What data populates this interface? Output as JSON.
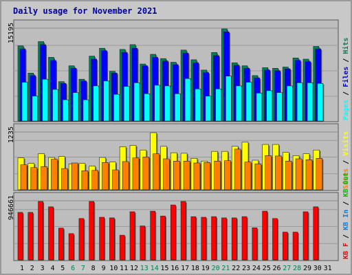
{
  "chart_data": {
    "type": "bar",
    "title": "Daily usage for November 2021",
    "days": [
      "1",
      "2",
      "3",
      "4",
      "5",
      "6",
      "7",
      "8",
      "9",
      "10",
      "11",
      "12",
      "13",
      "14",
      "15",
      "16",
      "17",
      "18",
      "19",
      "20",
      "21",
      "22",
      "23",
      "24",
      "25",
      "26",
      "27",
      "28",
      "29",
      "30",
      "31"
    ],
    "weekend_days": [
      "6",
      "7",
      "13",
      "14",
      "20",
      "21",
      "27",
      "28"
    ],
    "panels": [
      {
        "name": "hits-files-pages",
        "axis_max_label": "15195",
        "ymax": 15195,
        "legend": [
          {
            "label": "Pages",
            "color": "#00ffff"
          },
          {
            "label": " / ",
            "color": "#000000"
          },
          {
            "label": "Files",
            "color": "#0000ff"
          },
          {
            "label": " / ",
            "color": "#000000"
          },
          {
            "label": "Hits",
            "color": "#00805c"
          }
        ],
        "series": [
          {
            "name": "Hits",
            "color": "#00805c",
            "values": [
              12400,
              7900,
              13100,
              10500,
              6500,
              9100,
              6900,
              10700,
              12000,
              8200,
              11800,
              12600,
              9400,
              11000,
              10300,
              9700,
              11700,
              10100,
              8400,
              11300,
              15195,
              9600,
              9100,
              7500,
              8800,
              8700,
              8900,
              10400,
              10200,
              12300,
              null
            ]
          },
          {
            "name": "Files",
            "color": "#0000ff",
            "values": [
              11900,
              7500,
              12600,
              10000,
              6200,
              8700,
              6600,
              10200,
              11600,
              7900,
              11300,
              12000,
              9100,
              10500,
              9900,
              9300,
              11200,
              9600,
              8000,
              10800,
              14700,
              9200,
              8700,
              7100,
              8400,
              8300,
              8600,
              10000,
              9800,
              11900,
              null
            ]
          },
          {
            "name": "Pages",
            "color": "#00ffff",
            "values": [
              6400,
              4100,
              6900,
              5200,
              3500,
              4700,
              3500,
              5800,
              6600,
              4400,
              5700,
              6300,
              4500,
              5900,
              5800,
              4500,
              7000,
              5300,
              4100,
              5300,
              7400,
              5800,
              6400,
              4600,
              5000,
              4700,
              5800,
              6300,
              6300,
              6200,
              null
            ]
          }
        ]
      },
      {
        "name": "visits-sites",
        "axis_max_label": "1235",
        "ymax": 1235,
        "legend": [
          {
            "label": "Sites",
            "color": "#ff8000"
          },
          {
            "label": " / ",
            "color": "#000000"
          },
          {
            "label": "Visits",
            "color": "#ffff00"
          }
        ],
        "series": [
          {
            "name": "Visits",
            "color": "#ffff00",
            "values": [
              690,
              570,
              780,
              700,
              720,
              560,
              570,
              510,
              700,
              600,
              930,
              960,
              860,
              1235,
              940,
              800,
              790,
              680,
              620,
              830,
              830,
              940,
              1030,
              640,
              980,
              980,
              810,
              740,
              780,
              860,
              null
            ]
          },
          {
            "name": "Sites",
            "color": "#ff8000",
            "values": [
              540,
              480,
              500,
              660,
              460,
              580,
              410,
              420,
              590,
              430,
              610,
              690,
              710,
              780,
              670,
              620,
              620,
              580,
              590,
              620,
              630,
              880,
              600,
              560,
              740,
              730,
              620,
              670,
              650,
              680,
              null
            ]
          }
        ]
      },
      {
        "name": "kbytes",
        "axis_max_label": "946661",
        "ymax": 946661,
        "legend": [
          {
            "label": "KB F",
            "color": "#ff0000"
          },
          {
            "label": " / ",
            "color": "#000000"
          },
          {
            "label": "KB In",
            "color": "#0080ff"
          },
          {
            "label": " / ",
            "color": "#000000"
          },
          {
            "label": "KB Out",
            "color": "#00c000"
          }
        ],
        "series": [
          {
            "name": "KB F",
            "color": "#ff0000",
            "values": [
              770000,
              770000,
              946661,
              860000,
              515000,
              425000,
              670000,
              946661,
              690000,
              680000,
              400000,
              780000,
              550000,
              790000,
              710000,
              890000,
              946661,
              700000,
              690000,
              700000,
              680000,
              680000,
              700000,
              520000,
              790000,
              670000,
              450000,
              450000,
              780000,
              860000,
              null
            ]
          }
        ]
      }
    ]
  }
}
